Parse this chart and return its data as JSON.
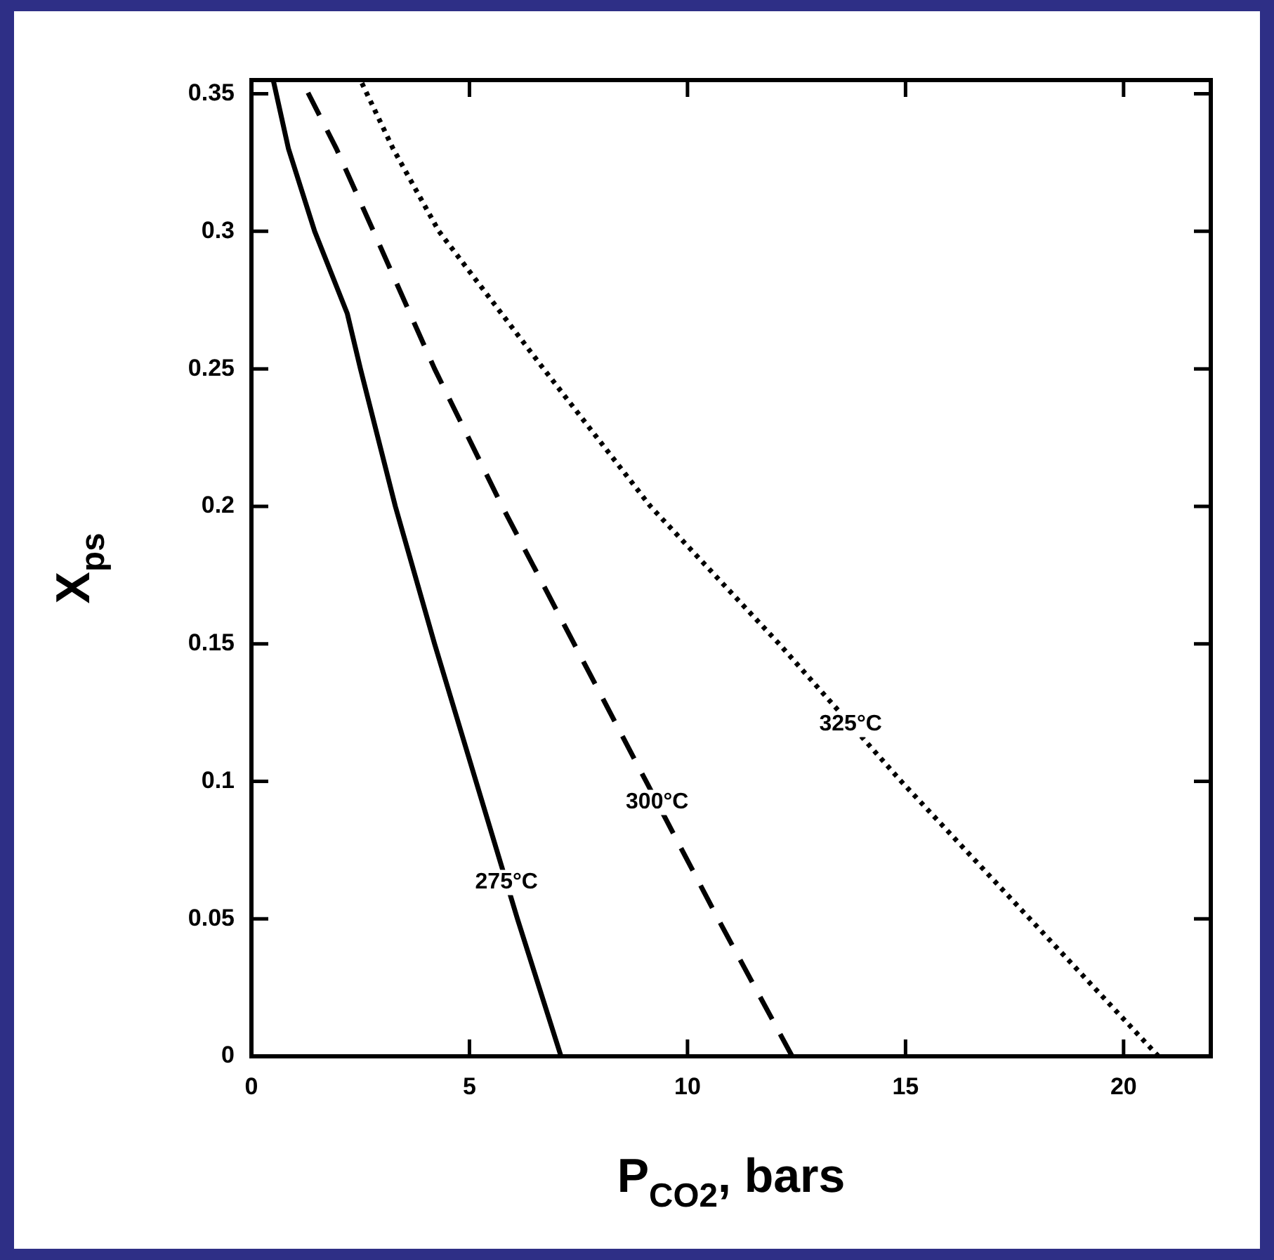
{
  "chart_data": {
    "type": "line",
    "xlabel": "P$_{CO2}$, bars",
    "ylabel": "X$_{ps}$",
    "xlim": [
      0,
      22
    ],
    "xticks": [
      0,
      5,
      10,
      15,
      20
    ],
    "ylim": [
      0,
      0.355
    ],
    "yticks": [
      0,
      0.05,
      0.1,
      0.15,
      0.2,
      0.25,
      0.3,
      0.35
    ],
    "grid": false,
    "legend": false,
    "marker": "none",
    "series": [
      {
        "name": "275°C",
        "color": "#000000",
        "line_style": "solid",
        "x": [
          7.1,
          6.1,
          5.15,
          4.2,
          3.3,
          2.5,
          2.2,
          1.45,
          0.85,
          0.5
        ],
        "values": [
          0,
          0.05,
          0.1,
          0.15,
          0.2,
          0.25,
          0.27,
          0.3,
          0.33,
          0.355
        ]
      },
      {
        "name": "300°C",
        "color": "#000000",
        "line_style": "dashed",
        "x": [
          12.4,
          10.7,
          9.05,
          7.4,
          5.75,
          4.2,
          2.8,
          1.95,
          1.15
        ],
        "values": [
          0,
          0.05,
          0.1,
          0.15,
          0.2,
          0.25,
          0.3,
          0.33,
          0.355
        ]
      },
      {
        "name": "325°C",
        "color": "#000000",
        "line_style": "dotted",
        "x": [
          20.8,
          17.85,
          14.9,
          12.1,
          9.15,
          6.7,
          4.3,
          3.25,
          2.5
        ],
        "values": [
          0,
          0.05,
          0.1,
          0.15,
          0.2,
          0.25,
          0.3,
          0.33,
          0.355
        ]
      }
    ]
  }
}
